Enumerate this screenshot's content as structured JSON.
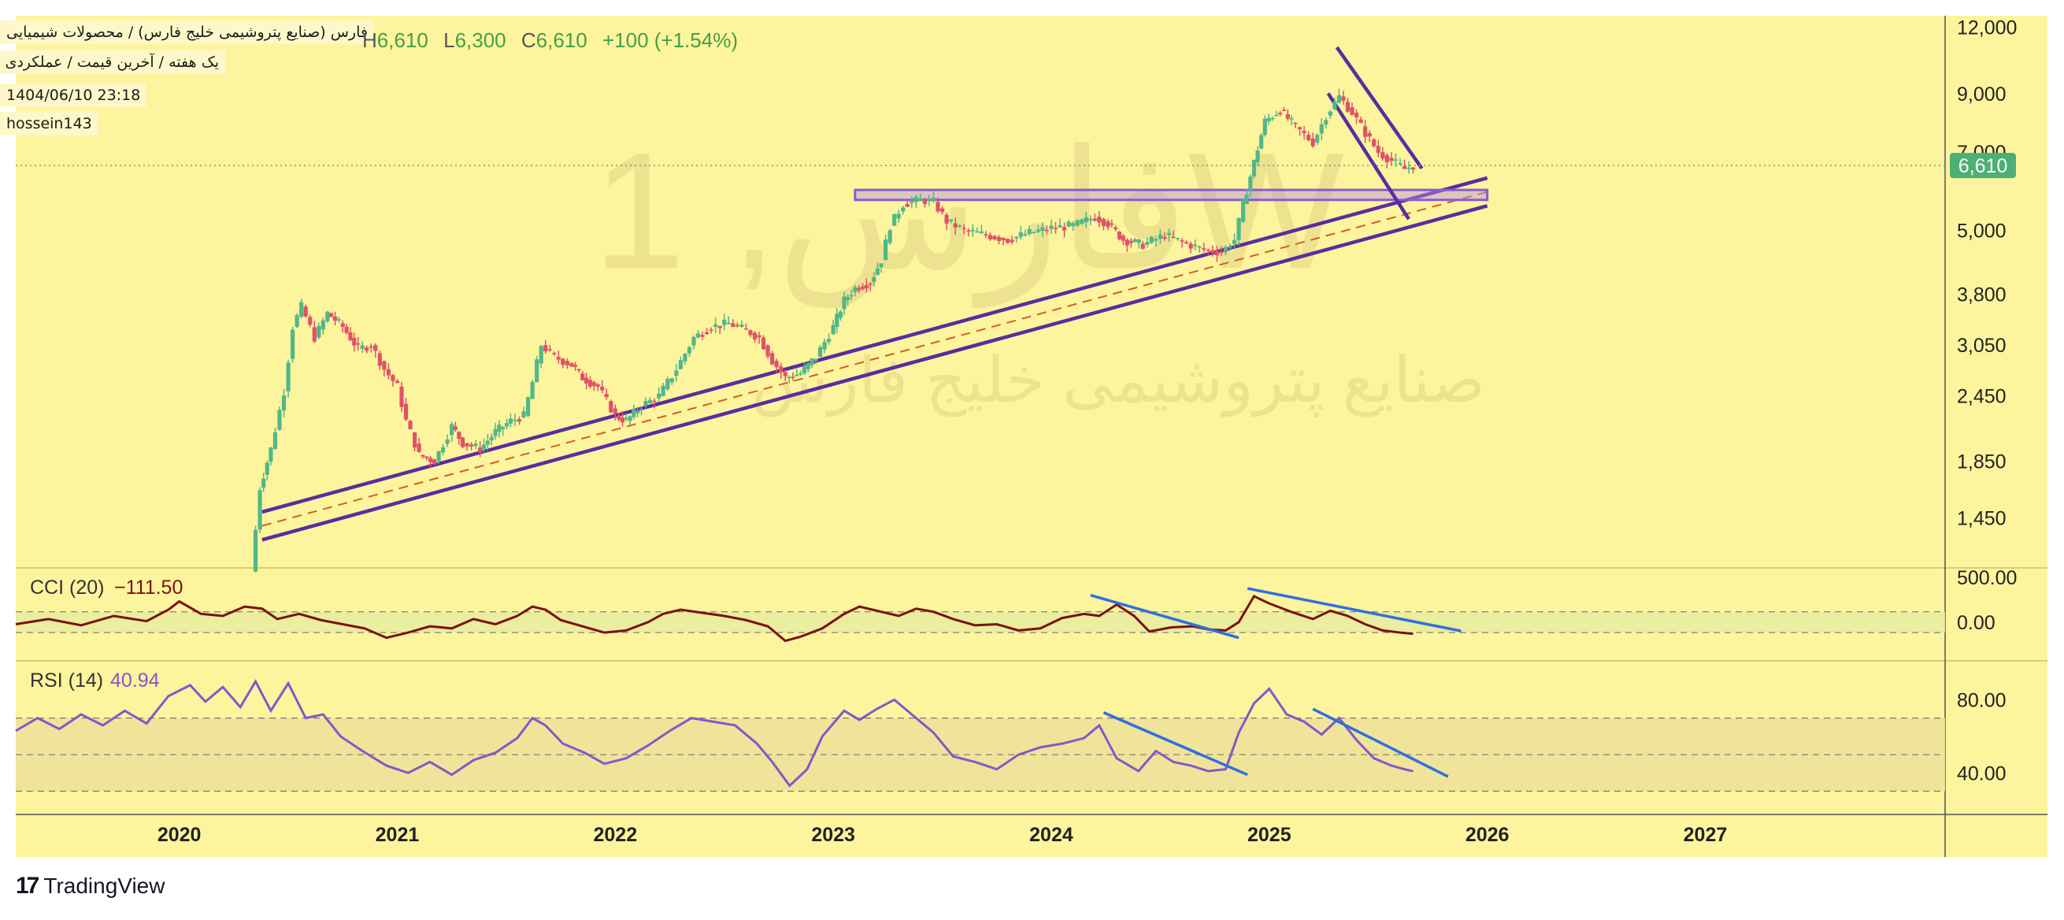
{
  "header": {
    "title": "فارس (صنایع پتروشیمی خلیج فارس) / محصولات شیمیایی",
    "interval": "یک هفته / آخرین قیمت / عملکردی",
    "timestamp": "1404/06/10 23:18",
    "author": "hossein143",
    "ohlc": {
      "H": "6,610",
      "L": "6,300",
      "C": "6,610",
      "change": "+100 (+1.54%)"
    }
  },
  "watermark": {
    "symbol": "فارس, 1W",
    "name": "صنایع پتروشیمی خلیج فارس"
  },
  "brand": "TradingView",
  "colors": {
    "background": "#fdf49e",
    "up": "#52b788",
    "down": "#e05267",
    "trendline": "#5a2ca0",
    "zone": "#b58de8",
    "cci_line": "#7a1212",
    "rsi_line": "#8557c9",
    "divergence_line": "#2f6fe0",
    "last_price_badge": "#4caf74"
  },
  "chart_data": [
    {
      "type": "candlestick",
      "scale": "log",
      "x_axis": {
        "labels": [
          "2020",
          "2021",
          "2022",
          "2023",
          "2024",
          "2025",
          "2026",
          "2027"
        ],
        "range": [
          2019.25,
          2028.1
        ]
      },
      "y_axis": {
        "ticks": [
          12000,
          9000,
          7000,
          5000,
          3800,
          3050,
          2450,
          1850,
          1450
        ],
        "range": [
          1180,
          12600
        ]
      },
      "last_price": 6610,
      "last_price_label": "6,610",
      "series_close": [
        [
          2020.33,
          1150
        ],
        [
          2020.37,
          1650
        ],
        [
          2020.42,
          1950
        ],
        [
          2020.48,
          2500
        ],
        [
          2020.52,
          3300
        ],
        [
          2020.56,
          3600
        ],
        [
          2020.62,
          3150
        ],
        [
          2020.68,
          3500
        ],
        [
          2020.75,
          3300
        ],
        [
          2020.82,
          3000
        ],
        [
          2020.88,
          3050
        ],
        [
          2020.94,
          2750
        ],
        [
          2021.0,
          2550
        ],
        [
          2021.04,
          2200
        ],
        [
          2021.1,
          1900
        ],
        [
          2021.17,
          1850
        ],
        [
          2021.25,
          2150
        ],
        [
          2021.3,
          2000
        ],
        [
          2021.38,
          1950
        ],
        [
          2021.45,
          2100
        ],
        [
          2021.52,
          2200
        ],
        [
          2021.58,
          2250
        ],
        [
          2021.62,
          2600
        ],
        [
          2021.66,
          3050
        ],
        [
          2021.72,
          2900
        ],
        [
          2021.8,
          2800
        ],
        [
          2021.85,
          2650
        ],
        [
          2021.92,
          2550
        ],
        [
          2022.0,
          2250
        ],
        [
          2022.05,
          2200
        ],
        [
          2022.12,
          2350
        ],
        [
          2022.2,
          2450
        ],
        [
          2022.28,
          2750
        ],
        [
          2022.36,
          3150
        ],
        [
          2022.44,
          3300
        ],
        [
          2022.52,
          3350
        ],
        [
          2022.6,
          3250
        ],
        [
          2022.66,
          3150
        ],
        [
          2022.72,
          2850
        ],
        [
          2022.78,
          2650
        ],
        [
          2022.85,
          2700
        ],
        [
          2022.92,
          2900
        ],
        [
          2023.0,
          3300
        ],
        [
          2023.05,
          3700
        ],
        [
          2023.1,
          3900
        ],
        [
          2023.17,
          4000
        ],
        [
          2023.22,
          4400
        ],
        [
          2023.26,
          5100
        ],
        [
          2023.32,
          5600
        ],
        [
          2023.4,
          5700
        ],
        [
          2023.46,
          5650
        ],
        [
          2023.52,
          5200
        ],
        [
          2023.6,
          5000
        ],
        [
          2023.7,
          4900
        ],
        [
          2023.8,
          4800
        ],
        [
          2023.9,
          4950
        ],
        [
          2024.0,
          5050
        ],
        [
          2024.1,
          5100
        ],
        [
          2024.2,
          5300
        ],
        [
          2024.26,
          5150
        ],
        [
          2024.33,
          4800
        ],
        [
          2024.42,
          4700
        ],
        [
          2024.52,
          4900
        ],
        [
          2024.6,
          4750
        ],
        [
          2024.7,
          4600
        ],
        [
          2024.78,
          4550
        ],
        [
          2024.84,
          4800
        ],
        [
          2024.88,
          5600
        ],
        [
          2024.93,
          6700
        ],
        [
          2024.98,
          8000
        ],
        [
          2025.05,
          8400
        ],
        [
          2025.12,
          7800
        ],
        [
          2025.2,
          7300
        ],
        [
          2025.26,
          8200
        ],
        [
          2025.32,
          8900
        ],
        [
          2025.38,
          8300
        ],
        [
          2025.44,
          7600
        ],
        [
          2025.5,
          7000
        ],
        [
          2025.56,
          6750
        ],
        [
          2025.62,
          6510
        ],
        [
          2025.66,
          6610
        ]
      ],
      "annotations": [
        {
          "type": "ascending-channel",
          "from": [
            2020.38,
            1400
          ],
          "to": [
            2026.0,
            5900
          ]
        },
        {
          "type": "resistance-zone",
          "price": [
            5700,
            5950
          ],
          "from": 2023.1,
          "to": 2026.0
        },
        {
          "type": "descending-channel",
          "from": [
            2025.25,
            11000
          ],
          "to": [
            2025.62,
            6400
          ]
        }
      ]
    },
    {
      "type": "line",
      "name": "CCI (20)",
      "value_label": "−111.50",
      "y_axis": {
        "ticks_labels": [
          "500.00",
          "0.00"
        ],
        "range": [
          -350,
          500
        ],
        "bands": [
          -100,
          100
        ]
      },
      "series": [
        [
          2019.25,
          -20
        ],
        [
          2019.4,
          30
        ],
        [
          2019.55,
          -30
        ],
        [
          2019.7,
          60
        ],
        [
          2019.85,
          10
        ],
        [
          2019.95,
          120
        ],
        [
          2020.0,
          200
        ],
        [
          2020.1,
          80
        ],
        [
          2020.2,
          60
        ],
        [
          2020.3,
          150
        ],
        [
          2020.38,
          130
        ],
        [
          2020.45,
          30
        ],
        [
          2020.55,
          80
        ],
        [
          2020.65,
          20
        ],
        [
          2020.75,
          -20
        ],
        [
          2020.85,
          -60
        ],
        [
          2020.95,
          -150
        ],
        [
          2021.05,
          -100
        ],
        [
          2021.15,
          -40
        ],
        [
          2021.25,
          -60
        ],
        [
          2021.35,
          30
        ],
        [
          2021.45,
          -20
        ],
        [
          2021.55,
          60
        ],
        [
          2021.62,
          150
        ],
        [
          2021.68,
          120
        ],
        [
          2021.75,
          20
        ],
        [
          2021.85,
          -40
        ],
        [
          2021.95,
          -100
        ],
        [
          2022.05,
          -80
        ],
        [
          2022.15,
          0
        ],
        [
          2022.22,
          80
        ],
        [
          2022.3,
          120
        ],
        [
          2022.4,
          90
        ],
        [
          2022.5,
          60
        ],
        [
          2022.6,
          20
        ],
        [
          2022.7,
          -40
        ],
        [
          2022.78,
          -180
        ],
        [
          2022.85,
          -140
        ],
        [
          2022.95,
          -60
        ],
        [
          2023.05,
          80
        ],
        [
          2023.12,
          150
        ],
        [
          2023.2,
          110
        ],
        [
          2023.3,
          60
        ],
        [
          2023.38,
          130
        ],
        [
          2023.46,
          100
        ],
        [
          2023.55,
          30
        ],
        [
          2023.65,
          -30
        ],
        [
          2023.75,
          -20
        ],
        [
          2023.85,
          -80
        ],
        [
          2023.95,
          -60
        ],
        [
          2024.05,
          40
        ],
        [
          2024.15,
          80
        ],
        [
          2024.22,
          60
        ],
        [
          2024.3,
          170
        ],
        [
          2024.38,
          60
        ],
        [
          2024.45,
          -90
        ],
        [
          2024.55,
          -50
        ],
        [
          2024.65,
          -40
        ],
        [
          2024.72,
          -70
        ],
        [
          2024.8,
          -80
        ],
        [
          2024.86,
          0
        ],
        [
          2024.93,
          250
        ],
        [
          2025.0,
          180
        ],
        [
          2025.1,
          100
        ],
        [
          2025.2,
          30
        ],
        [
          2025.28,
          110
        ],
        [
          2025.36,
          60
        ],
        [
          2025.44,
          -20
        ],
        [
          2025.52,
          -80
        ],
        [
          2025.6,
          -100
        ],
        [
          2025.66,
          -111.5
        ]
      ],
      "divergence_lines": [
        {
          "from": [
            2024.18,
            260
          ],
          "to": [
            2024.86,
            -150
          ]
        },
        {
          "from": [
            2024.9,
            325
          ],
          "to": [
            2025.88,
            -85
          ]
        }
      ]
    },
    {
      "type": "line",
      "name": "RSI (14)",
      "value_label": "40.94",
      "y_axis": {
        "ticks_labels": [
          "80.00",
          "40.00"
        ],
        "range": [
          19,
          100
        ],
        "bands": [
          30,
          50,
          70
        ]
      },
      "series": [
        [
          2019.25,
          63
        ],
        [
          2019.35,
          70
        ],
        [
          2019.45,
          64
        ],
        [
          2019.55,
          72
        ],
        [
          2019.65,
          66
        ],
        [
          2019.75,
          74
        ],
        [
          2019.85,
          67
        ],
        [
          2019.95,
          82
        ],
        [
          2020.05,
          88
        ],
        [
          2020.12,
          79
        ],
        [
          2020.2,
          87
        ],
        [
          2020.28,
          76
        ],
        [
          2020.35,
          90
        ],
        [
          2020.42,
          74
        ],
        [
          2020.5,
          89
        ],
        [
          2020.58,
          70
        ],
        [
          2020.66,
          72
        ],
        [
          2020.74,
          60
        ],
        [
          2020.84,
          52
        ],
        [
          2020.95,
          44
        ],
        [
          2021.05,
          40
        ],
        [
          2021.15,
          46
        ],
        [
          2021.25,
          39
        ],
        [
          2021.35,
          47
        ],
        [
          2021.45,
          51
        ],
        [
          2021.55,
          59
        ],
        [
          2021.62,
          70
        ],
        [
          2021.68,
          66
        ],
        [
          2021.76,
          56
        ],
        [
          2021.86,
          51
        ],
        [
          2021.95,
          45
        ],
        [
          2022.05,
          48
        ],
        [
          2022.15,
          55
        ],
        [
          2022.25,
          63
        ],
        [
          2022.35,
          70
        ],
        [
          2022.45,
          68
        ],
        [
          2022.55,
          66
        ],
        [
          2022.65,
          56
        ],
        [
          2022.72,
          46
        ],
        [
          2022.8,
          33
        ],
        [
          2022.88,
          42
        ],
        [
          2022.95,
          60
        ],
        [
          2023.05,
          74
        ],
        [
          2023.12,
          69
        ],
        [
          2023.2,
          75
        ],
        [
          2023.28,
          80
        ],
        [
          2023.36,
          72
        ],
        [
          2023.46,
          62
        ],
        [
          2023.55,
          49
        ],
        [
          2023.65,
          46
        ],
        [
          2023.75,
          42
        ],
        [
          2023.85,
          50
        ],
        [
          2023.95,
          54
        ],
        [
          2024.05,
          56
        ],
        [
          2024.15,
          59
        ],
        [
          2024.22,
          66
        ],
        [
          2024.3,
          48
        ],
        [
          2024.4,
          41
        ],
        [
          2024.48,
          52
        ],
        [
          2024.56,
          46
        ],
        [
          2024.64,
          44
        ],
        [
          2024.72,
          41
        ],
        [
          2024.8,
          42
        ],
        [
          2024.86,
          62
        ],
        [
          2024.93,
          78
        ],
        [
          2025.0,
          86
        ],
        [
          2025.08,
          72
        ],
        [
          2025.16,
          68
        ],
        [
          2025.24,
          61
        ],
        [
          2025.32,
          70
        ],
        [
          2025.4,
          58
        ],
        [
          2025.48,
          48
        ],
        [
          2025.56,
          44
        ],
        [
          2025.62,
          42
        ],
        [
          2025.66,
          40.94
        ]
      ],
      "divergence_lines": [
        {
          "from": [
            2024.24,
            73
          ],
          "to": [
            2024.9,
            39
          ]
        },
        {
          "from": [
            2025.2,
            75
          ],
          "to": [
            2025.82,
            38
          ]
        }
      ]
    }
  ]
}
